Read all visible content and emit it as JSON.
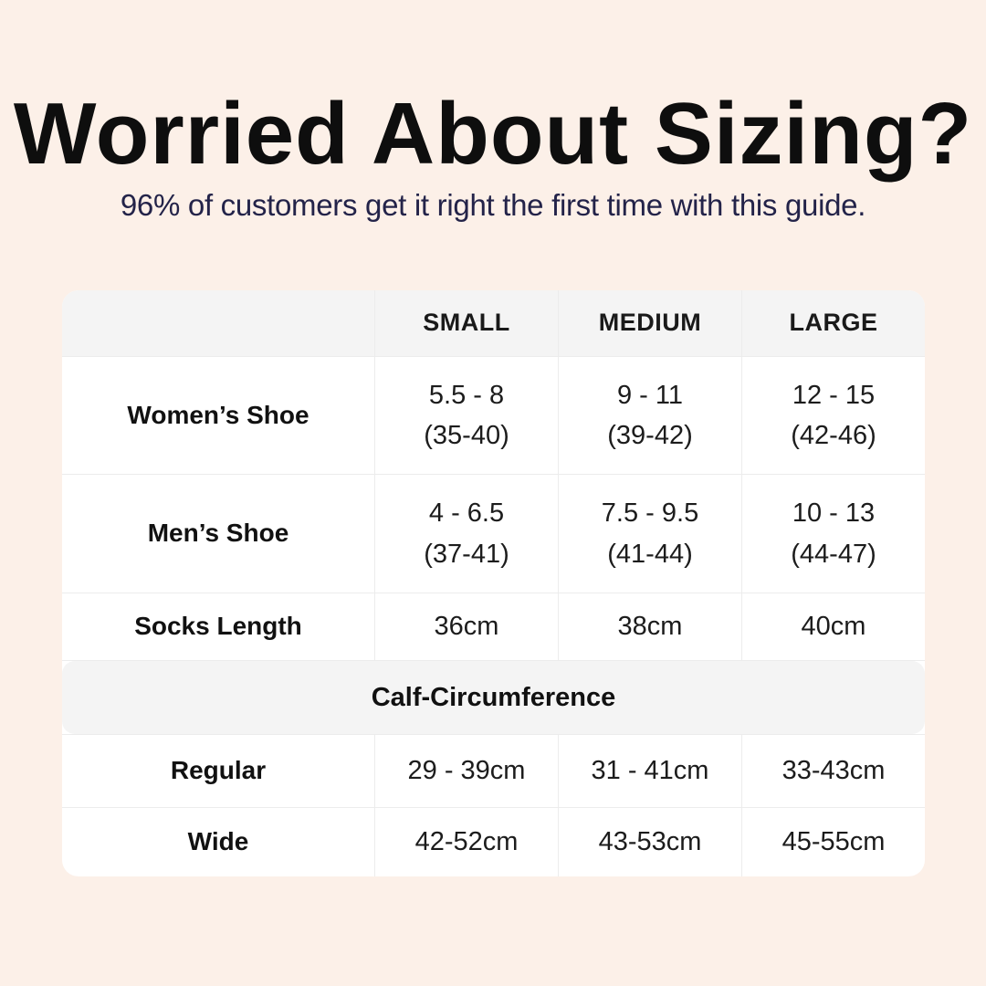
{
  "page": {
    "title": "Worried About Sizing?",
    "subtitle": "96% of customers get it right the first time with this guide.",
    "colors": {
      "background": "#fcf0e8",
      "title_text": "#0e0e0e",
      "subtitle_text": "#232349",
      "table_background": "#ffffff",
      "header_band_background": "#f4f4f4",
      "divider": "#ececec",
      "cell_text": "#1c1c1c"
    }
  },
  "table": {
    "columns": [
      "",
      "SMALL",
      "MEDIUM",
      "LARGE"
    ],
    "shoe_rows": [
      {
        "label": "Women’s Shoe",
        "cells": [
          {
            "l1": "5.5 - 8",
            "l2": "(35-40)"
          },
          {
            "l1": "9 - 11",
            "l2": "(39-42)"
          },
          {
            "l1": "12 - 15",
            "l2": "(42-46)"
          }
        ]
      },
      {
        "label": "Men’s Shoe",
        "cells": [
          {
            "l1": "4 - 6.5",
            "l2": "(37-41)"
          },
          {
            "l1": "7.5 - 9.5",
            "l2": "(41-44)"
          },
          {
            "l1": "10 - 13",
            "l2": "(44-47)"
          }
        ]
      }
    ],
    "socks_row": {
      "label": "Socks Length",
      "cells": [
        "36cm",
        "38cm",
        "40cm"
      ]
    },
    "section_header": "Calf-Circumference",
    "calf_rows": [
      {
        "label": "Regular",
        "cells": [
          "29 - 39cm",
          "31 - 41cm",
          "33-43cm"
        ]
      },
      {
        "label": "Wide",
        "cells": [
          "42-52cm",
          "43-53cm",
          "45-55cm"
        ]
      }
    ]
  },
  "chart_data": {
    "type": "table",
    "title": "Worried About Sizing?",
    "subtitle": "96% of customers get it right the first time with this guide.",
    "columns": [
      "",
      "SMALL",
      "MEDIUM",
      "LARGE"
    ],
    "rows": [
      {
        "label": "Women’s Shoe",
        "small": "5.5 - 8 (35-40)",
        "medium": "9 - 11 (39-42)",
        "large": "12 - 15 (42-46)"
      },
      {
        "label": "Men’s Shoe",
        "small": "4 - 6.5 (37-41)",
        "medium": "7.5 - 9.5 (41-44)",
        "large": "10 - 13 (44-47)"
      },
      {
        "label": "Socks Length",
        "small": "36cm",
        "medium": "38cm",
        "large": "40cm"
      },
      {
        "label": "Calf-Circumference",
        "section_header_spanning_all_columns": true
      },
      {
        "label": "Regular",
        "small": "29 - 39cm",
        "medium": "31 - 41cm",
        "large": "33-43cm"
      },
      {
        "label": "Wide",
        "small": "42-52cm",
        "medium": "43-53cm",
        "large": "45-55cm"
      }
    ]
  }
}
